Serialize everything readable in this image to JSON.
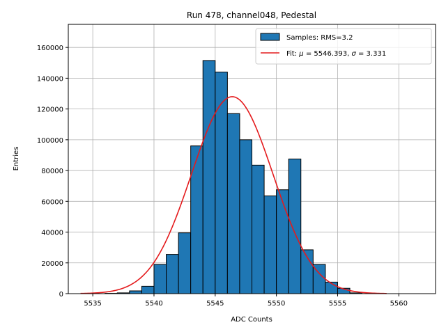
{
  "chart_data": {
    "type": "bar",
    "title": "Run 478, channel048, Pedestal",
    "xlabel": "ADC Counts",
    "ylabel": "Entries",
    "xlim": [
      5533,
      5563
    ],
    "ylim": [
      0,
      175000
    ],
    "xticks": [
      "5535",
      "5540",
      "5545",
      "5550",
      "5555",
      "5560"
    ],
    "xtick_values": [
      5535,
      5540,
      5545,
      5550,
      5555,
      5560
    ],
    "yticks": [
      "0",
      "20000",
      "40000",
      "60000",
      "80000",
      "100000",
      "120000",
      "140000",
      "160000"
    ],
    "ytick_values": [
      0,
      20000,
      40000,
      60000,
      80000,
      100000,
      120000,
      140000,
      160000
    ],
    "grid": true,
    "legend_position": "top-right",
    "bin_width": 1,
    "histogram": {
      "name": "Samples: RMS=3.2",
      "color": "#1f77b4",
      "edge_color": "#000000",
      "bins": [
        {
          "left": 5534,
          "value": 0
        },
        {
          "left": 5535,
          "value": 0
        },
        {
          "left": 5536,
          "value": 200
        },
        {
          "left": 5537,
          "value": 500
        },
        {
          "left": 5538,
          "value": 1800
        },
        {
          "left": 5539,
          "value": 4800
        },
        {
          "left": 5540,
          "value": 19000
        },
        {
          "left": 5541,
          "value": 25500
        },
        {
          "left": 5542,
          "value": 39500
        },
        {
          "left": 5543,
          "value": 96000
        },
        {
          "left": 5544,
          "value": 151500
        },
        {
          "left": 5545,
          "value": 144000
        },
        {
          "left": 5546,
          "value": 117000
        },
        {
          "left": 5547,
          "value": 100000
        },
        {
          "left": 5548,
          "value": 83500
        },
        {
          "left": 5549,
          "value": 63500
        },
        {
          "left": 5550,
          "value": 67500
        },
        {
          "left": 5551,
          "value": 87500
        },
        {
          "left": 5552,
          "value": 28500
        },
        {
          "left": 5553,
          "value": 19000
        },
        {
          "left": 5554,
          "value": 7500
        },
        {
          "left": 5555,
          "value": 3500
        },
        {
          "left": 5556,
          "value": 500
        },
        {
          "left": 5557,
          "value": 0
        }
      ]
    },
    "fit": {
      "name_prefix": "Fit: ",
      "name_mu": "μ",
      "name_mu_value": " = 5546.393, ",
      "name_sigma": "σ",
      "name_sigma_value": " = 3.331",
      "color": "#e41a1c",
      "mu": 5546.393,
      "sigma": 3.331,
      "amplitude": 128000,
      "x_range": [
        5534,
        5559
      ]
    }
  }
}
